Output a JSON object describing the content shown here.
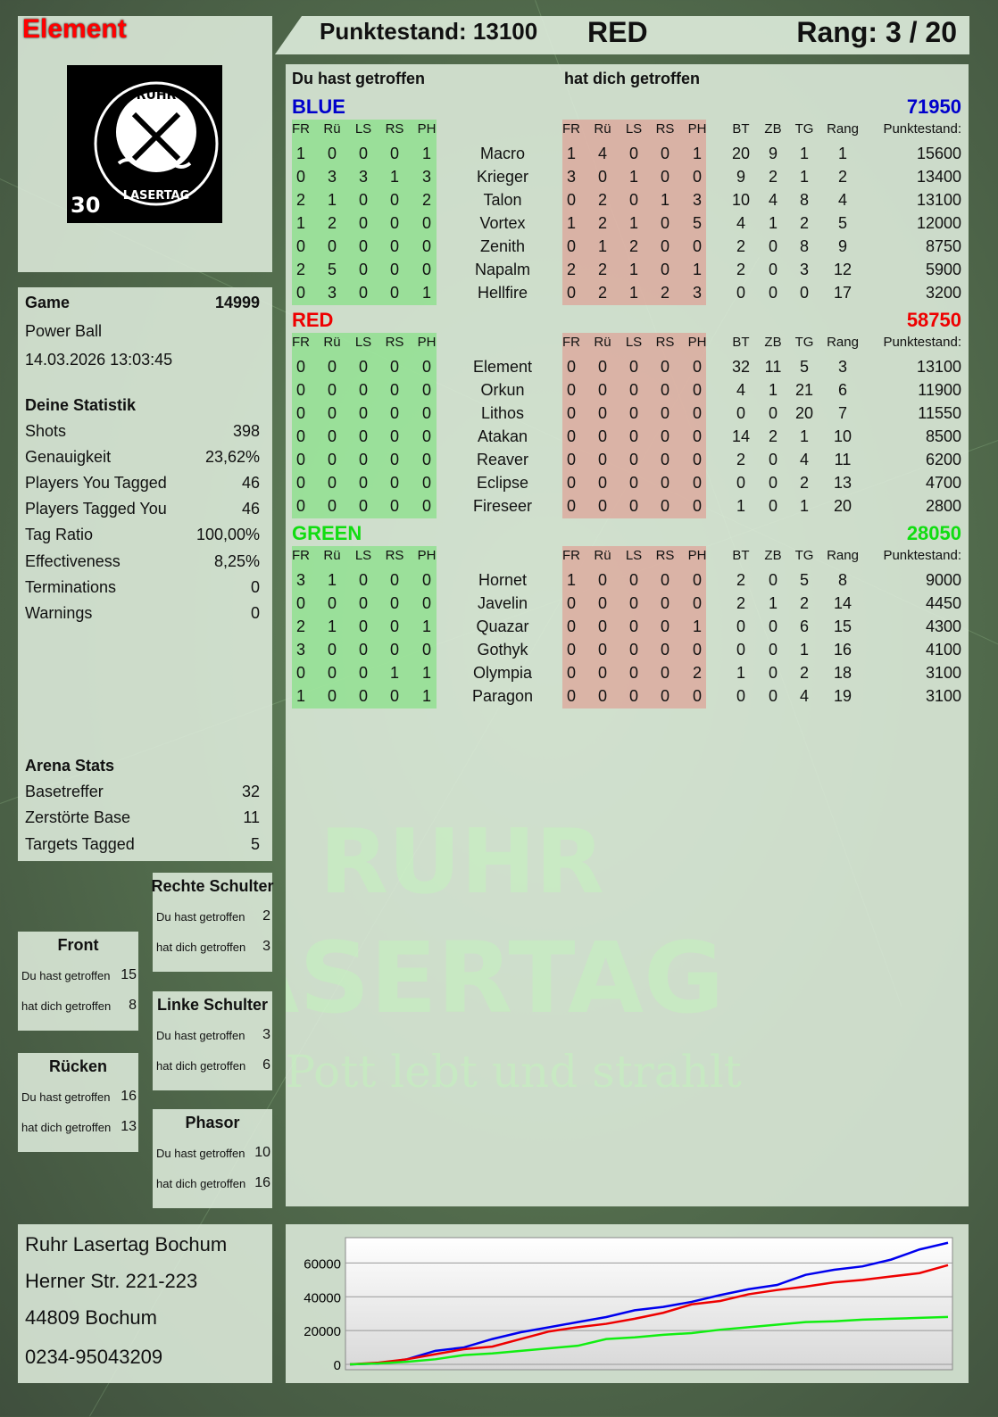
{
  "player_name": "Element",
  "header": {
    "score_label": "Punktestand: 13100",
    "team": "RED",
    "rank_label": "Rang: 3 / 20"
  },
  "logo": {
    "text": "RUHR LASERTAG",
    "badge": "30"
  },
  "watermark": {
    "line1": "RUHR",
    "line2": "LASERTAG",
    "slogan": "Der Pott lebt und strahlt"
  },
  "game": {
    "label": "Game",
    "number": "14999",
    "mode": "Power Ball",
    "datetime": "14.03.2026 13:03:45"
  },
  "stats": {
    "title": "Deine Statistik",
    "rows": [
      {
        "label": "Shots",
        "value": "398"
      },
      {
        "label": "Genauigkeit",
        "value": "23,62%"
      },
      {
        "label": "Players You Tagged",
        "value": "46"
      },
      {
        "label": "Players Tagged You",
        "value": "46"
      },
      {
        "label": "Tag Ratio",
        "value": "100,00%"
      },
      {
        "label": "Effectiveness",
        "value": "8,25%"
      },
      {
        "label": "Terminations",
        "value": "0"
      },
      {
        "label": "Warnings",
        "value": "0"
      }
    ]
  },
  "arena": {
    "title": "Arena Stats",
    "rows": [
      {
        "label": "Basetreffer",
        "value": "32"
      },
      {
        "label": "Zerstörte Base",
        "value": "11"
      },
      {
        "label": "Targets Tagged",
        "value": "5"
      }
    ]
  },
  "body_parts": {
    "front": {
      "title": "Front",
      "hit": "15",
      "got_hit": "8"
    },
    "back": {
      "title": "Rücken",
      "hit": "16",
      "got_hit": "13"
    },
    "right_shoulder": {
      "title": "Rechte Schulter",
      "hit": "2",
      "got_hit": "3"
    },
    "left_shoulder": {
      "title": "Linke Schulter",
      "hit": "3",
      "got_hit": "6"
    },
    "phasor": {
      "title": "Phasor",
      "hit": "10",
      "got_hit": "16"
    },
    "hit_label": "Du hast getroffen",
    "got_hit_label": "hat dich getroffen"
  },
  "main": {
    "you_hit": "Du hast getroffen",
    "hit_you": "hat dich getroffen",
    "hit_cols": [
      "FR",
      "Rü",
      "LS",
      "RS",
      "PH"
    ],
    "stat_cols": [
      "BT",
      "ZB",
      "TG",
      "Rang",
      "Punktestand:"
    ],
    "teams": [
      {
        "name": "BLUE",
        "score": "71950",
        "color": "#0000cc",
        "players": [
          {
            "name": "Macro",
            "hit": [
              1,
              0,
              0,
              0,
              1
            ],
            "got": [
              1,
              4,
              0,
              0,
              1
            ],
            "stats": [
              20,
              9,
              1,
              1,
              15600
            ]
          },
          {
            "name": "Krieger",
            "hit": [
              0,
              3,
              3,
              1,
              3
            ],
            "got": [
              3,
              0,
              1,
              0,
              0
            ],
            "stats": [
              9,
              2,
              1,
              2,
              13400
            ]
          },
          {
            "name": "Talon",
            "hit": [
              2,
              1,
              0,
              0,
              2
            ],
            "got": [
              0,
              2,
              0,
              1,
              3
            ],
            "stats": [
              10,
              4,
              8,
              4,
              13100
            ]
          },
          {
            "name": "Vortex",
            "hit": [
              1,
              2,
              0,
              0,
              0
            ],
            "got": [
              1,
              2,
              1,
              0,
              5
            ],
            "stats": [
              4,
              1,
              2,
              5,
              12000
            ]
          },
          {
            "name": "Zenith",
            "hit": [
              0,
              0,
              0,
              0,
              0
            ],
            "got": [
              0,
              1,
              2,
              0,
              0
            ],
            "stats": [
              2,
              0,
              8,
              9,
              8750
            ]
          },
          {
            "name": "Napalm",
            "hit": [
              2,
              5,
              0,
              0,
              0
            ],
            "got": [
              2,
              2,
              1,
              0,
              1
            ],
            "stats": [
              2,
              0,
              3,
              12,
              5900
            ]
          },
          {
            "name": "Hellfire",
            "hit": [
              0,
              3,
              0,
              0,
              1
            ],
            "got": [
              0,
              2,
              1,
              2,
              3
            ],
            "stats": [
              0,
              0,
              0,
              17,
              3200
            ]
          }
        ]
      },
      {
        "name": "RED",
        "score": "58750",
        "color": "#ee0000",
        "players": [
          {
            "name": "Element",
            "hit": [
              0,
              0,
              0,
              0,
              0
            ],
            "got": [
              0,
              0,
              0,
              0,
              0
            ],
            "stats": [
              32,
              11,
              5,
              3,
              13100
            ]
          },
          {
            "name": "Orkun",
            "hit": [
              0,
              0,
              0,
              0,
              0
            ],
            "got": [
              0,
              0,
              0,
              0,
              0
            ],
            "stats": [
              4,
              1,
              21,
              6,
              11900
            ]
          },
          {
            "name": "Lithos",
            "hit": [
              0,
              0,
              0,
              0,
              0
            ],
            "got": [
              0,
              0,
              0,
              0,
              0
            ],
            "stats": [
              0,
              0,
              20,
              7,
              11550
            ]
          },
          {
            "name": "Atakan",
            "hit": [
              0,
              0,
              0,
              0,
              0
            ],
            "got": [
              0,
              0,
              0,
              0,
              0
            ],
            "stats": [
              14,
              2,
              1,
              10,
              8500
            ]
          },
          {
            "name": "Reaver",
            "hit": [
              0,
              0,
              0,
              0,
              0
            ],
            "got": [
              0,
              0,
              0,
              0,
              0
            ],
            "stats": [
              2,
              0,
              4,
              11,
              6200
            ]
          },
          {
            "name": "Eclipse",
            "hit": [
              0,
              0,
              0,
              0,
              0
            ],
            "got": [
              0,
              0,
              0,
              0,
              0
            ],
            "stats": [
              0,
              0,
              2,
              13,
              4700
            ]
          },
          {
            "name": "Fireseer",
            "hit": [
              0,
              0,
              0,
              0,
              0
            ],
            "got": [
              0,
              0,
              0,
              0,
              0
            ],
            "stats": [
              1,
              0,
              1,
              20,
              2800
            ]
          }
        ]
      },
      {
        "name": "GREEN",
        "score": "28050",
        "color": "#11dd11",
        "players": [
          {
            "name": "Hornet",
            "hit": [
              3,
              1,
              0,
              0,
              0
            ],
            "got": [
              1,
              0,
              0,
              0,
              0
            ],
            "stats": [
              2,
              0,
              5,
              8,
              9000
            ]
          },
          {
            "name": "Javelin",
            "hit": [
              0,
              0,
              0,
              0,
              0
            ],
            "got": [
              0,
              0,
              0,
              0,
              0
            ],
            "stats": [
              2,
              1,
              2,
              14,
              4450
            ]
          },
          {
            "name": "Quazar",
            "hit": [
              2,
              1,
              0,
              0,
              1
            ],
            "got": [
              0,
              0,
              0,
              0,
              1
            ],
            "stats": [
              0,
              0,
              6,
              15,
              4300
            ]
          },
          {
            "name": "Gothyk",
            "hit": [
              3,
              0,
              0,
              0,
              0
            ],
            "got": [
              0,
              0,
              0,
              0,
              0
            ],
            "stats": [
              0,
              0,
              1,
              16,
              4100
            ]
          },
          {
            "name": "Olympia",
            "hit": [
              0,
              0,
              0,
              1,
              1
            ],
            "got": [
              0,
              0,
              0,
              0,
              2
            ],
            "stats": [
              1,
              0,
              2,
              18,
              3100
            ]
          },
          {
            "name": "Paragon",
            "hit": [
              1,
              0,
              0,
              0,
              1
            ],
            "got": [
              0,
              0,
              0,
              0,
              0
            ],
            "stats": [
              0,
              0,
              4,
              19,
              3100
            ]
          }
        ]
      }
    ]
  },
  "address": {
    "lines": [
      "Ruhr Lasertag Bochum",
      "Herner Str. 221-223",
      "44809 Bochum",
      "0234-95043209"
    ]
  },
  "chart_data": {
    "type": "line",
    "title": "",
    "xlabel": "",
    "ylabel": "",
    "ylim": [
      0,
      75000
    ],
    "grid": true,
    "legend": "none",
    "yticks": [
      "0",
      "20000",
      "40000",
      "60000"
    ],
    "series": [
      {
        "color": "#0000ee",
        "values": [
          0,
          500,
          3000,
          8000,
          10000,
          15000,
          19000,
          22000,
          25000,
          28000,
          32000,
          34000,
          37000,
          41000,
          44500,
          47000,
          53000,
          56000,
          58000,
          62000,
          68000,
          71950
        ]
      },
      {
        "color": "#ee0000",
        "values": [
          0,
          1000,
          3000,
          6000,
          9000,
          10500,
          15000,
          19500,
          22000,
          24000,
          27000,
          30500,
          35500,
          37500,
          41500,
          44000,
          46000,
          48500,
          50000,
          52000,
          54000,
          58750
        ]
      },
      {
        "color": "#11ee11",
        "values": [
          0,
          500,
          1500,
          3000,
          5500,
          6500,
          8000,
          9500,
          11000,
          15000,
          16000,
          17500,
          18500,
          20500,
          22000,
          23500,
          25000,
          25500,
          26500,
          27000,
          27500,
          28050
        ]
      }
    ]
  }
}
